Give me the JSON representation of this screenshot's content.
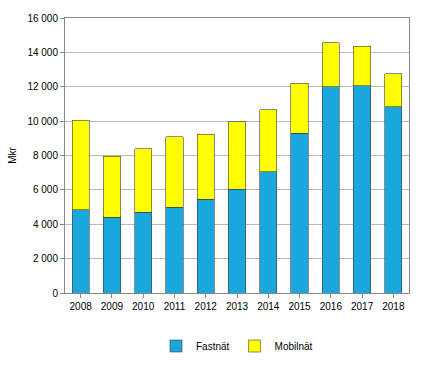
{
  "chart_data": {
    "type": "bar",
    "stacked": true,
    "y_label": "Mkr",
    "categories": [
      "2008",
      "2009",
      "2010",
      "2011",
      "2012",
      "2013",
      "2014",
      "2015",
      "2016",
      "2017",
      "2018"
    ],
    "series": [
      {
        "name": "Fastnät",
        "color": "#1aa7de",
        "values": [
          4850,
          4400,
          4700,
          5000,
          5450,
          6050,
          7050,
          9300,
          12000,
          12050,
          10850
        ]
      },
      {
        "name": "Mobilnät",
        "color": "#ffff00",
        "values": [
          5200,
          3550,
          3700,
          4100,
          3800,
          3900,
          3600,
          2900,
          2550,
          2300,
          1900
        ]
      }
    ],
    "ylim": [
      0,
      16000
    ],
    "yticks": [
      0,
      {
        "value": 2000,
        "label": "2 000"
      },
      {
        "value": 4000,
        "label": "4 000"
      },
      {
        "value": 6000,
        "label": "6 000"
      },
      {
        "value": 8000,
        "label": "8 000"
      },
      {
        "value": 10000,
        "label": "10 000"
      },
      {
        "value": 12000,
        "label": "12 000"
      },
      {
        "value": 14000,
        "label": "14 000"
      },
      {
        "value": 16000,
        "label": "16 000"
      }
    ],
    "grid": true,
    "legend": "bottom"
  }
}
